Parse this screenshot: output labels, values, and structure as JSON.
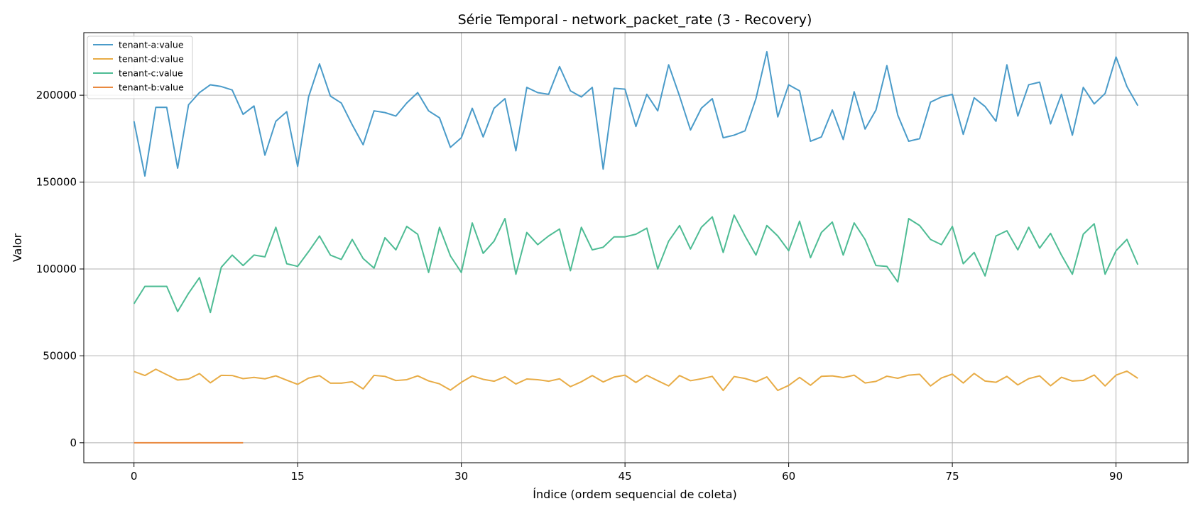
{
  "chart_data": {
    "type": "line",
    "title": "Série Temporal - network_packet_rate (3 - Recovery)",
    "xlabel": "Índice (ordem sequencial de coleta)",
    "ylabel": "Valor",
    "xlim": [
      -4.6,
      96.6
    ],
    "ylim": [
      -11500,
      236000
    ],
    "xticks": [
      0,
      15,
      30,
      45,
      60,
      75,
      90
    ],
    "yticks": [
      0,
      50000,
      100000,
      150000,
      200000
    ],
    "grid": true,
    "legend_position": "top-left",
    "series": [
      {
        "name": "tenant-a:value",
        "color": "#4a9bc9",
        "values": [
          185000,
          153500,
          193000,
          193000,
          158000,
          194500,
          201500,
          206000,
          205000,
          203000,
          189000,
          193800,
          165500,
          185000,
          190500,
          159000,
          199000,
          218000,
          199500,
          195500,
          183000,
          171500,
          191000,
          190000,
          188000,
          195500,
          201500,
          191000,
          187000,
          170000,
          175500,
          192500,
          176000,
          192500,
          198000,
          168000,
          204500,
          201500,
          200500,
          216500,
          202500,
          199000,
          204500,
          157500,
          204000,
          203500,
          182000,
          200500,
          191000,
          217500,
          199500,
          180000,
          192500,
          198000,
          175500,
          177000,
          179500,
          198000,
          225000,
          187500,
          206000,
          202500,
          173500,
          176000,
          191500,
          174500,
          202000,
          180500,
          191500,
          217000,
          188500,
          173500,
          175000,
          196000,
          199000,
          200500,
          177500,
          198500,
          193500,
          185000,
          217500,
          188000,
          206000,
          207500,
          183500,
          200500,
          177000,
          204500,
          195000,
          201000,
          222000,
          205000,
          194000
        ]
      },
      {
        "name": "tenant-d:value",
        "color": "#e8ac46",
        "values": [
          41000,
          38700,
          42300,
          39200,
          36100,
          36700,
          39800,
          34500,
          38800,
          38700,
          36900,
          37600,
          36800,
          38500,
          36000,
          33600,
          37200,
          38600,
          34300,
          34300,
          35100,
          31000,
          38800,
          38200,
          35800,
          36300,
          38500,
          35600,
          33900,
          30300,
          34800,
          38500,
          36500,
          35400,
          38000,
          33800,
          36700,
          36300,
          35400,
          36800,
          32300,
          35100,
          38700,
          35000,
          37800,
          38900,
          34700,
          38800,
          35700,
          32700,
          38700,
          35700,
          36800,
          38200,
          30100,
          38100,
          37000,
          35100,
          37900,
          30100,
          33000,
          37600,
          33100,
          38200,
          38500,
          37500,
          38900,
          34400,
          35300,
          38300,
          37100,
          38900,
          39400,
          32700,
          37300,
          39500,
          34400,
          39900,
          35500,
          34800,
          38200,
          33300,
          36900,
          38500,
          32800,
          37700,
          35500,
          35900,
          39000,
          32700,
          38900,
          41200,
          37100
        ]
      },
      {
        "name": "tenant-c:value",
        "color": "#4ebc94",
        "values": [
          80000,
          90000,
          90000,
          90000,
          75500,
          86000,
          95000,
          75000,
          101000,
          108000,
          102000,
          108000,
          107000,
          124000,
          103000,
          101500,
          110000,
          119000,
          108000,
          105500,
          117000,
          106000,
          100500,
          118000,
          111000,
          124500,
          120000,
          98000,
          124000,
          107500,
          98000,
          126500,
          109000,
          116000,
          129000,
          97000,
          121000,
          114000,
          119000,
          123000,
          99000,
          124000,
          111000,
          112500,
          118500,
          118500,
          120000,
          123500,
          100000,
          116000,
          125000,
          111500,
          124000,
          130000,
          109500,
          131000,
          119000,
          108000,
          125000,
          119000,
          110500,
          127500,
          106500,
          121000,
          127000,
          108000,
          126500,
          117000,
          102000,
          101500,
          92500,
          129000,
          125000,
          117000,
          114000,
          124500,
          103000,
          109500,
          96000,
          119000,
          122000,
          111000,
          124000,
          112000,
          120500,
          108000,
          97000,
          120000,
          126000,
          97000,
          110500,
          117000,
          102500
        ]
      },
      {
        "name": "tenant-b:value",
        "color": "#e9893f",
        "values": [
          0,
          0,
          0,
          0,
          0,
          0,
          0,
          0,
          0,
          0,
          0
        ]
      }
    ]
  }
}
